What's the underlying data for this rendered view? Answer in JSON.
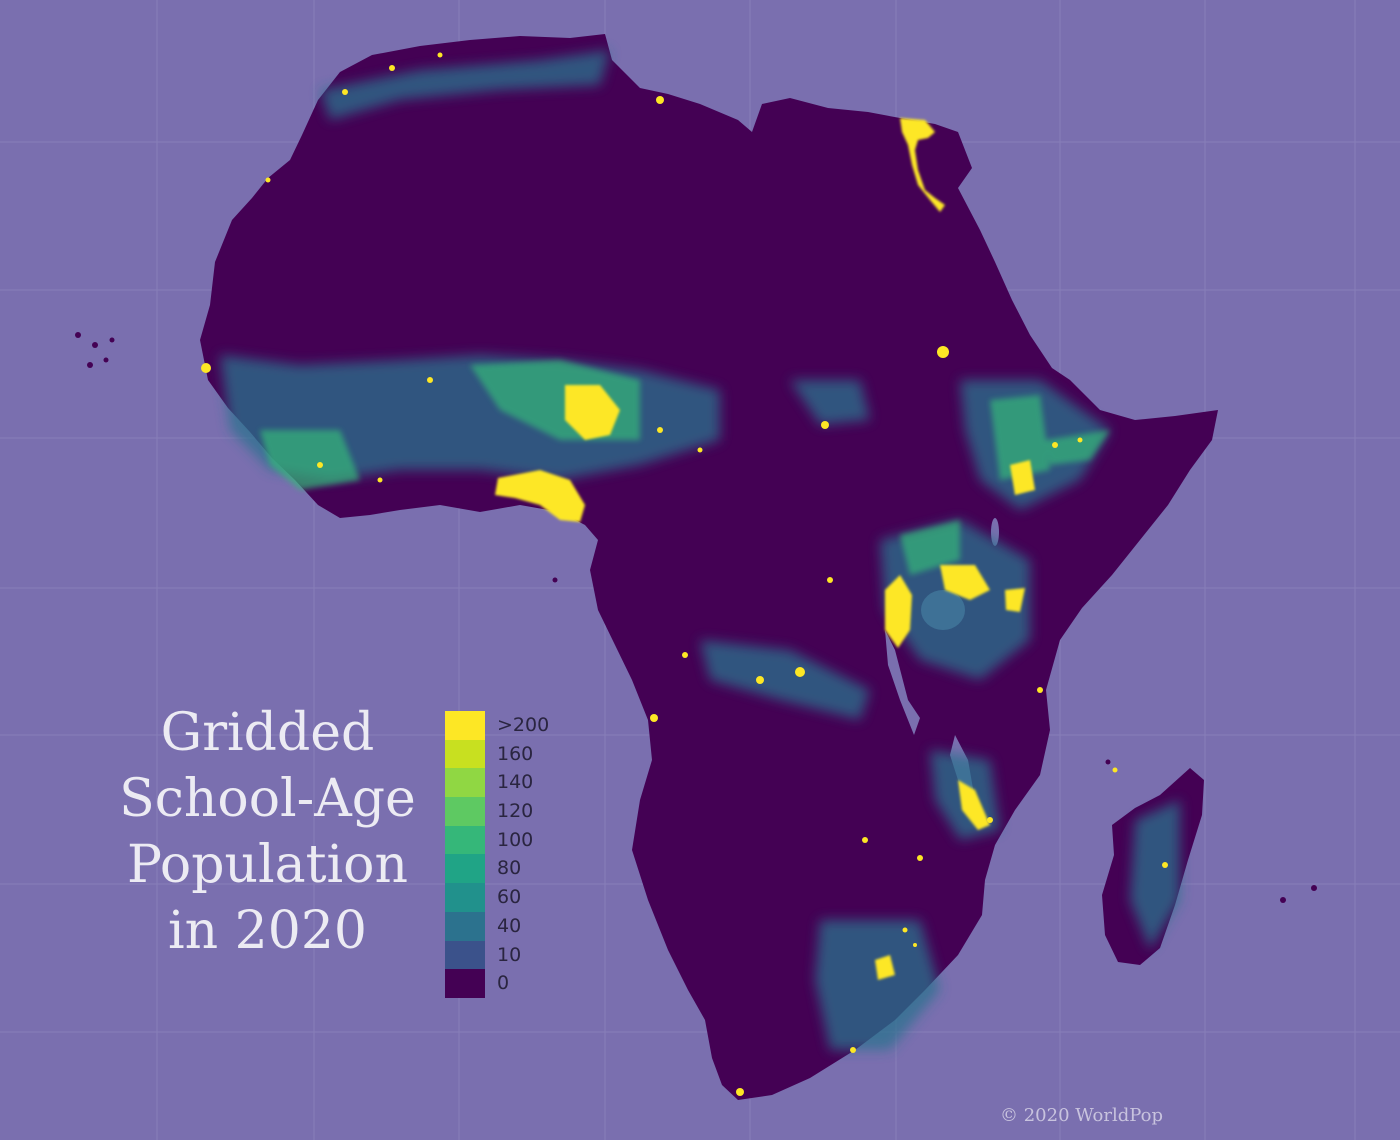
{
  "title_lines": [
    "Gridded",
    "School-Age",
    "Population",
    "in 2020"
  ],
  "legend": {
    "items": [
      {
        "label": ">200",
        "color": "#fde725"
      },
      {
        "label": "160",
        "color": "#c8e020"
      },
      {
        "label": "140",
        "color": "#90d743"
      },
      {
        "label": "120",
        "color": "#5ec962"
      },
      {
        "label": "100",
        "color": "#35b779"
      },
      {
        "label": "80",
        "color": "#20a486"
      },
      {
        "label": "60",
        "color": "#21918c"
      },
      {
        "label": "40",
        "color": "#2c728e"
      },
      {
        "label": "10",
        "color": "#3b528b"
      },
      {
        "label": "0",
        "color": "#440154"
      }
    ]
  },
  "credit": "© 2020 WorldPop",
  "colors": {
    "background": "#7a6faf",
    "land": "#440154",
    "high_density": "#fde725",
    "medium_density": "#35b779",
    "low_density": "#2c728e",
    "grid": "#8f86bd"
  }
}
